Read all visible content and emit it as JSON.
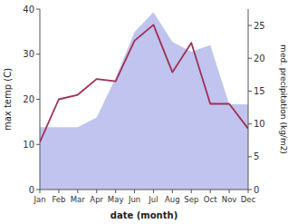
{
  "chart_data": {
    "type": "line",
    "categories": [
      "Jan",
      "Feb",
      "Mar",
      "Apr",
      "May",
      "Jun",
      "Jul",
      "Aug",
      "Sep",
      "Oct",
      "Nov",
      "Dec"
    ],
    "xlabel": "date (month)",
    "ylabel": "max temp (C)",
    "y2label": "med. precipitation (kg/m2)",
    "series": [
      {
        "type": "area",
        "axis": "y2",
        "color": "#c0c4ee",
        "values": [
          9.5,
          9.5,
          9.5,
          11.0,
          17.0,
          24.0,
          27.0,
          22.5,
          21.0,
          22.0,
          13.0,
          13.0
        ]
      },
      {
        "type": "line",
        "color": "#a03050",
        "values": [
          10.5,
          20.0,
          21.0,
          24.5,
          24.0,
          33.0,
          36.5,
          26.0,
          32.5,
          19.0,
          19.0,
          13.5
        ]
      }
    ],
    "ylim": [
      0,
      40
    ],
    "yticks": [
      0,
      10,
      20,
      30,
      40
    ],
    "y2lim": [
      0,
      27.5
    ],
    "y2ticks": [
      0,
      5,
      10,
      15,
      20,
      25
    ]
  }
}
